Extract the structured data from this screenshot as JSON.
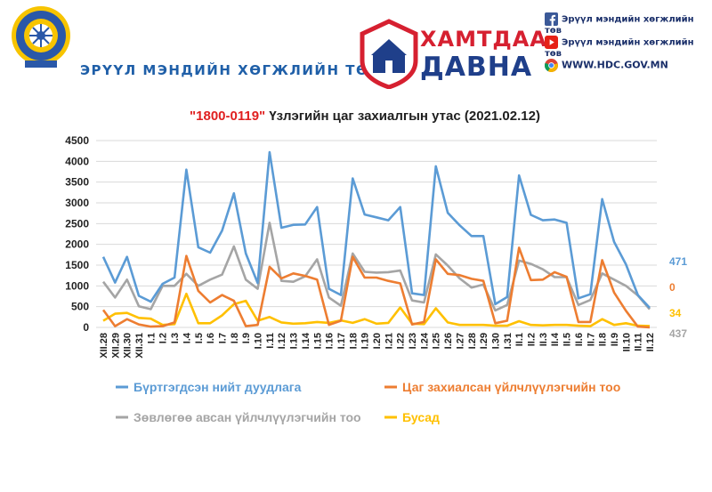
{
  "header": {
    "org_name": "ЭРҮҮЛ МЭНДИЙН ХӨГЖЛИЙН ТӨВ",
    "campaign_line1": "ХАМТДАА",
    "campaign_line2": "ДАВНА",
    "social": [
      {
        "icon": "facebook-icon",
        "label": "Эрүүл мэндийн хөгжлийн төв"
      },
      {
        "icon": "youtube-icon",
        "label": "Эрүүл мэндийн хөгжлийн төв"
      },
      {
        "icon": "chrome-icon",
        "label": "WWW.HDC.GOV.MN"
      }
    ]
  },
  "chart_data": {
    "type": "line",
    "title_red": "\"1800-0119\"",
    "title_rest": " Үзлэгийн цаг захиалгын утас (2021.02.12)",
    "ylim": [
      0,
      4500
    ],
    "yticks": [
      0,
      500,
      1000,
      1500,
      2000,
      2500,
      3000,
      3500,
      4000,
      4500
    ],
    "grid": true,
    "legend_position": "bottom",
    "categories": [
      "XII.28",
      "XII.29",
      "XII.30",
      "XII.31",
      "I.1",
      "I.2",
      "I.3",
      "I.4",
      "I.5",
      "I.6",
      "I.7",
      "I.8",
      "I.9",
      "I.10",
      "I.11",
      "I.12",
      "I.13",
      "I.14",
      "I.15",
      "I.16",
      "I.17",
      "I.18",
      "I.19",
      "I.20",
      "I.21",
      "I.22",
      "I.23",
      "I.24",
      "I.25",
      "I.26",
      "I.27",
      "I.28",
      "I.29",
      "I.30",
      "I.31",
      "II.1",
      "II.2",
      "II.3",
      "II.4",
      "II.5",
      "II.6",
      "II.7",
      "II.8",
      "II.9",
      "II.10",
      "II.11",
      "II.12"
    ],
    "series": [
      {
        "name": "Бүртгэгдсэн нийт дуудлага",
        "color": "#5b9bd5",
        "end_label": "471",
        "values": [
          1700,
          1080,
          1700,
          760,
          620,
          1050,
          1200,
          3800,
          1930,
          1800,
          2330,
          3230,
          1780,
          1070,
          4220,
          2400,
          2470,
          2480,
          2900,
          930,
          780,
          3590,
          2720,
          2650,
          2580,
          2900,
          820,
          780,
          3880,
          2760,
          2460,
          2200,
          2200,
          560,
          730,
          3660,
          2710,
          2580,
          2600,
          2520,
          700,
          800,
          3090,
          2060,
          1520,
          780,
          471
        ]
      },
      {
        "name": "Цаг захиалсан үйлчлүүлэгчийн тоо",
        "color": "#ed7d31",
        "end_label": "0",
        "values": [
          420,
          30,
          200,
          70,
          20,
          30,
          120,
          1720,
          880,
          600,
          780,
          640,
          30,
          60,
          1460,
          1180,
          1300,
          1240,
          1150,
          60,
          160,
          1700,
          1200,
          1200,
          1120,
          1060,
          70,
          130,
          1640,
          1290,
          1260,
          1170,
          1120,
          100,
          160,
          1920,
          1140,
          1150,
          1330,
          1220,
          130,
          130,
          1620,
          840,
          400,
          20,
          0
        ]
      },
      {
        "name": "Зөвлөгөө авсан үйлчлүүлэгчийн тоо",
        "color": "#a5a5a5",
        "end_label": "437",
        "values": [
          1100,
          720,
          1150,
          510,
          440,
          1000,
          1000,
          1290,
          1000,
          1150,
          1270,
          1950,
          1150,
          930,
          2520,
          1120,
          1100,
          1230,
          1640,
          720,
          520,
          1780,
          1340,
          1320,
          1330,
          1370,
          650,
          600,
          1760,
          1490,
          1180,
          960,
          1030,
          410,
          540,
          1610,
          1530,
          1400,
          1210,
          1210,
          540,
          660,
          1300,
          1150,
          1000,
          770,
          437
        ]
      },
      {
        "name": "Бусад",
        "color": "#ffc000",
        "end_label": "34",
        "values": [
          160,
          330,
          350,
          230,
          210,
          60,
          80,
          810,
          100,
          100,
          290,
          560,
          640,
          160,
          250,
          120,
          90,
          100,
          130,
          110,
          170,
          110,
          200,
          90,
          110,
          480,
          90,
          80,
          460,
          120,
          60,
          60,
          60,
          40,
          40,
          150,
          60,
          50,
          60,
          60,
          40,
          30,
          200,
          60,
          100,
          40,
          34
        ]
      }
    ]
  }
}
